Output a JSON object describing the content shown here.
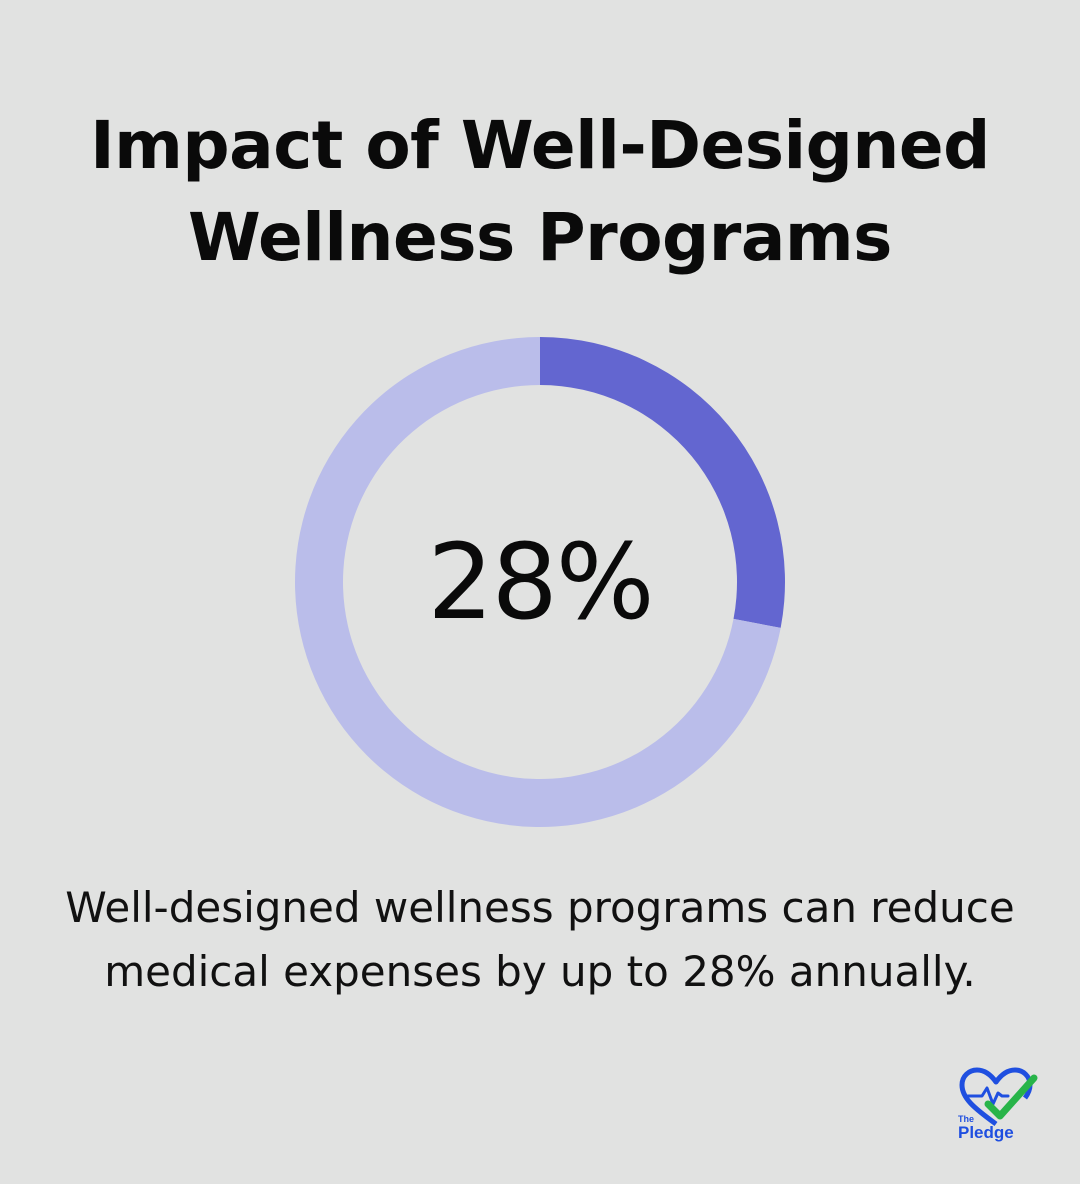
{
  "title_lines": [
    "Impact of Well-Designed",
    "Wellness Programs"
  ],
  "chart_data": {
    "type": "pie",
    "variant": "donut",
    "values": [
      28,
      72
    ],
    "center_label": "28%",
    "colors": [
      "#6366d0",
      "#babdea"
    ]
  },
  "caption_lines": [
    "Well-designed wellness programs can reduce",
    "medical expenses by up to 28% annually."
  ],
  "logo": {
    "icon": "heart-check-icon",
    "small_text": "The",
    "name_text": "Pledge",
    "colors": {
      "heart": "#1f4fe0",
      "check": "#28b449",
      "text": "#1f4fe0"
    }
  },
  "colors": {
    "background": "#e1e2e1"
  }
}
